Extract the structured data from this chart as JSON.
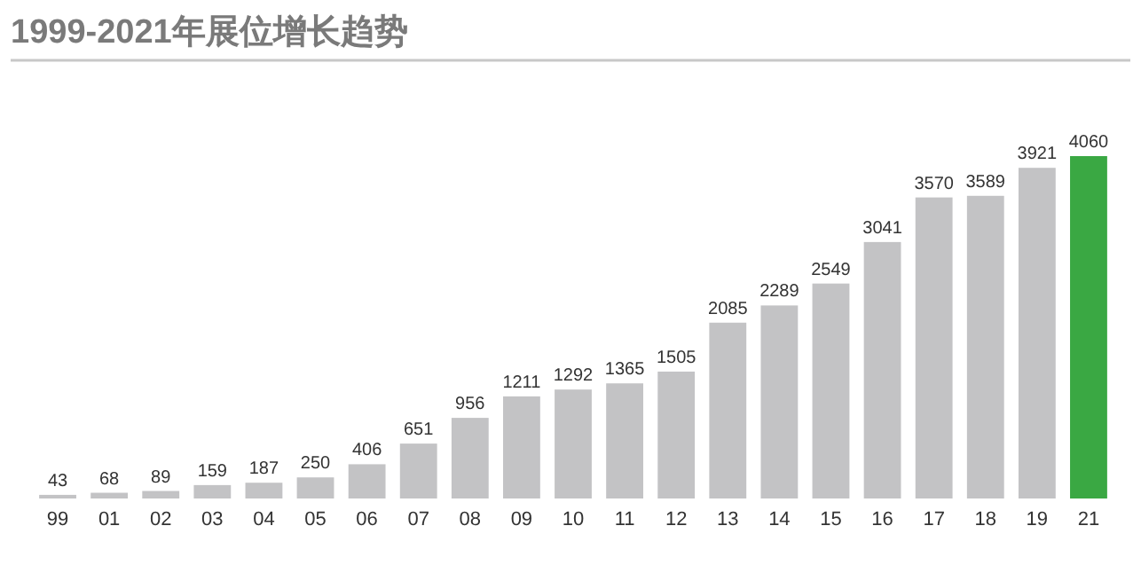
{
  "chart_data": {
    "type": "bar",
    "title": "1999-2021年展位增长趋势",
    "categories": [
      "99",
      "01",
      "02",
      "03",
      "04",
      "05",
      "06",
      "07",
      "08",
      "09",
      "10",
      "11",
      "12",
      "13",
      "14",
      "15",
      "16",
      "17",
      "18",
      "19",
      "21"
    ],
    "values": [
      43,
      68,
      89,
      159,
      187,
      250,
      406,
      651,
      956,
      1211,
      1292,
      1365,
      1505,
      2085,
      2289,
      2549,
      3041,
      3570,
      3589,
      3921,
      4060
    ],
    "colors": [
      "#c3c3c5",
      "#c3c3c5",
      "#c3c3c5",
      "#c3c3c5",
      "#c3c3c5",
      "#c3c3c5",
      "#c3c3c5",
      "#c3c3c5",
      "#c3c3c5",
      "#c3c3c5",
      "#c3c3c5",
      "#c3c3c5",
      "#c3c3c5",
      "#c3c3c5",
      "#c3c3c5",
      "#c3c3c5",
      "#c3c3c5",
      "#c3c3c5",
      "#c3c3c5",
      "#c3c3c5",
      "#3aa843"
    ],
    "data_labels": true
  }
}
